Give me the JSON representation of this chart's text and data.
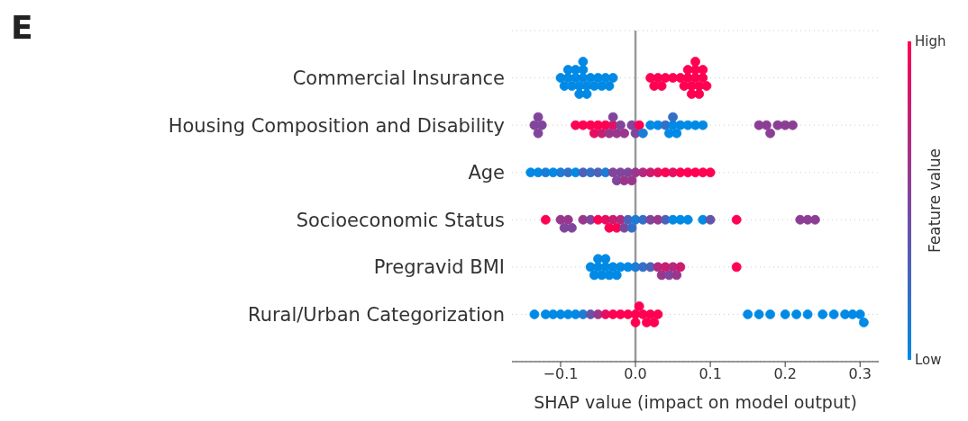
{
  "chart_data": {
    "type": "scatter",
    "orientation": "horizontal",
    "categories": [
      "Commercial Insurance",
      "Housing Composition and Disability",
      "Age",
      "Socioeconomic Status",
      "Pregravid BMI",
      "Rural/Urban Categorization"
    ],
    "series": [
      {
        "x": [
          "Commercial Insurance",
          "Commercial Insurance",
          "Commercial Insurance",
          "Commercial Insurance",
          "Commercial Insurance",
          "Commercial Insurance",
          "Commercial Insurance",
          "Commercial Insurance",
          "Commercial Insurance",
          "Commercial Insurance",
          "Commercial Insurance",
          "Commercial Insurance",
          "Commercial Insurance",
          "Commercial Insurance",
          "Commercial Insurance",
          "Commercial Insurance",
          "Commercial Insurance",
          "Commercial Insurance",
          "Commercial Insurance",
          "Commercial Insurance",
          "Commercial Insurance",
          "Commercial Insurance",
          "Commercial Insurance",
          "Commercial Insurance",
          "Commercial Insurance",
          "Commercial Insurance",
          "Commercial Insurance",
          "Commercial Insurance",
          "Commercial Insurance",
          "Commercial Insurance",
          "Commercial Insurance",
          "Commercial Insurance",
          "Commercial Insurance",
          "Commercial Insurance",
          "Commercial Insurance",
          "Commercial Insurance",
          "Commercial Insurance",
          "Commercial Insurance",
          "Commercial Insurance",
          "Commercial Insurance",
          "Commercial Insurance"
        ],
        "values": [
          -0.1,
          -0.095,
          -0.09,
          -0.09,
          -0.085,
          -0.08,
          -0.08,
          -0.075,
          -0.075,
          -0.07,
          -0.07,
          -0.07,
          -0.065,
          -0.065,
          -0.06,
          -0.055,
          -0.05,
          -0.045,
          -0.04,
          -0.035,
          -0.03,
          0.02,
          0.025,
          0.03,
          0.035,
          0.04,
          0.05,
          0.06,
          0.065,
          0.07,
          0.07,
          0.075,
          0.075,
          0.08,
          0.08,
          0.08,
          0.085,
          0.085,
          0.09,
          0.09,
          0.095
        ],
        "cvalues": [
          0,
          0,
          0,
          0,
          0,
          0,
          0,
          0,
          0,
          0,
          0,
          0,
          0,
          0,
          0,
          0,
          0,
          0,
          0,
          0,
          0,
          1,
          1,
          1,
          1,
          1,
          1,
          1,
          1,
          1,
          1,
          1,
          1,
          1,
          1,
          1,
          1,
          1,
          1,
          1,
          1
        ],
        "colors": [
          "#008ae5",
          "#008ae5",
          "#008ae5",
          "#008ae5",
          "#008ae5",
          "#008ae5",
          "#008ae5",
          "#008ae5",
          "#008ae5",
          "#008ae5",
          "#008ae5",
          "#008ae5",
          "#008ae5",
          "#008ae5",
          "#008ae5",
          "#008ae5",
          "#008ae5",
          "#008ae5",
          "#008ae5",
          "#008ae5",
          "#008ae5",
          "#ff0052",
          "#ff0052",
          "#ff0052",
          "#ff0052",
          "#ff0052",
          "#ff0052",
          "#ff0052",
          "#ff0052",
          "#ff0052",
          "#ff0052",
          "#ff0052",
          "#ff0052",
          "#ff0052",
          "#ff0052",
          "#ff0052",
          "#ff0052",
          "#ff0052",
          "#ff0052",
          "#ff0052",
          "#ff0052"
        ]
      },
      {
        "x": [
          "Housing Composition and Disability",
          "Housing Composition and Disability",
          "Housing Composition and Disability",
          "Housing Composition and Disability",
          "Housing Composition and Disability",
          "Housing Composition and Disability",
          "Housing Composition and Disability",
          "Housing Composition and Disability",
          "Housing Composition and Disability",
          "Housing Composition and Disability",
          "Housing Composition and Disability",
          "Housing Composition and Disability",
          "Housing Composition and Disability",
          "Housing Composition and Disability",
          "Housing Composition and Disability",
          "Housing Composition and Disability",
          "Housing Composition and Disability",
          "Housing Composition and Disability",
          "Housing Composition and Disability",
          "Housing Composition and Disability",
          "Housing Composition and Disability",
          "Housing Composition and Disability",
          "Housing Composition and Disability",
          "Housing Composition and Disability",
          "Housing Composition and Disability",
          "Housing Composition and Disability",
          "Housing Composition and Disability",
          "Housing Composition and Disability",
          "Housing Composition and Disability",
          "Housing Composition and Disability",
          "Housing Composition and Disability",
          "Housing Composition and Disability",
          "Housing Composition and Disability",
          "Housing Composition and Disability",
          "Housing Composition and Disability",
          "Housing Composition and Disability",
          "Housing Composition and Disability",
          "Housing Composition and Disability"
        ],
        "values": [
          -0.135,
          -0.13,
          -0.13,
          -0.125,
          -0.08,
          -0.07,
          -0.06,
          -0.055,
          -0.05,
          -0.045,
          -0.04,
          -0.035,
          -0.03,
          -0.03,
          -0.025,
          -0.02,
          -0.015,
          -0.005,
          0.0,
          0.005,
          0.01,
          0.02,
          0.03,
          0.04,
          0.045,
          0.05,
          0.05,
          0.055,
          0.06,
          0.07,
          0.08,
          0.09,
          0.165,
          0.175,
          0.18,
          0.19,
          0.2,
          0.21
        ],
        "cvalues": [
          0.5,
          0.5,
          0.5,
          0.5,
          1,
          1,
          1,
          0.9,
          1,
          0.8,
          1,
          0.6,
          0.9,
          0.5,
          0.6,
          0.5,
          0.6,
          0.5,
          0.5,
          1,
          0.1,
          0,
          0,
          0.2,
          0,
          0,
          0.2,
          0,
          0,
          0,
          0,
          0,
          0.55,
          0.55,
          0.55,
          0.55,
          0.55,
          0.55
        ],
        "colors": [
          "#80459c",
          "#80459c",
          "#80459c",
          "#80459c",
          "#ff0052",
          "#ff0052",
          "#ff0052",
          "#e60e61",
          "#ff0052",
          "#cc1c6f",
          "#ff0052",
          "#99378d",
          "#e60e61",
          "#80459c",
          "#99378d",
          "#80459c",
          "#99378d",
          "#80459c",
          "#80459c",
          "#ff0052",
          "#1a7cd6",
          "#008ae5",
          "#008ae5",
          "#336ec8",
          "#008ae5",
          "#008ae5",
          "#336ec8",
          "#008ae5",
          "#008ae5",
          "#008ae5",
          "#008ae5",
          "#008ae5",
          "#8c3e94",
          "#8c3e94",
          "#8c3e94",
          "#8c3e94",
          "#8c3e94",
          "#8c3e94"
        ]
      },
      {
        "x": [
          "Age",
          "Age",
          "Age",
          "Age",
          "Age",
          "Age",
          "Age",
          "Age",
          "Age",
          "Age",
          "Age",
          "Age",
          "Age",
          "Age",
          "Age",
          "Age",
          "Age",
          "Age",
          "Age",
          "Age",
          "Age",
          "Age",
          "Age",
          "Age",
          "Age",
          "Age",
          "Age",
          "Age"
        ],
        "values": [
          -0.14,
          -0.13,
          -0.12,
          -0.11,
          -0.1,
          -0.09,
          -0.08,
          -0.07,
          -0.06,
          -0.05,
          -0.04,
          -0.03,
          -0.025,
          -0.02,
          -0.015,
          -0.01,
          -0.005,
          0.0,
          0.01,
          0.02,
          0.03,
          0.04,
          0.05,
          0.06,
          0.07,
          0.08,
          0.09,
          0.1
        ],
        "cvalues": [
          0,
          0,
          0.1,
          0,
          0.1,
          0.2,
          0,
          0.3,
          0.2,
          0.3,
          0.1,
          0.5,
          0.5,
          0.5,
          0.6,
          0.5,
          0.6,
          0.6,
          0.7,
          0.8,
          0.9,
          1,
          0.9,
          1,
          1,
          1,
          1,
          1
        ],
        "colors": [
          "#008ae5",
          "#008ae5",
          "#1a7cd6",
          "#008ae5",
          "#1a7cd6",
          "#336ec8",
          "#008ae5",
          "#4d61b9",
          "#336ec8",
          "#4d61b9",
          "#1a7cd6",
          "#80459c",
          "#80459c",
          "#80459c",
          "#99378d",
          "#80459c",
          "#99378d",
          "#99378d",
          "#b3297e",
          "#cc1c6f",
          "#e60e61",
          "#ff0052",
          "#e60e61",
          "#ff0052",
          "#ff0052",
          "#ff0052",
          "#ff0052",
          "#ff0052"
        ]
      },
      {
        "x": [
          "Socioeconomic Status",
          "Socioeconomic Status",
          "Socioeconomic Status",
          "Socioeconomic Status",
          "Socioeconomic Status",
          "Socioeconomic Status",
          "Socioeconomic Status",
          "Socioeconomic Status",
          "Socioeconomic Status",
          "Socioeconomic Status",
          "Socioeconomic Status",
          "Socioeconomic Status",
          "Socioeconomic Status",
          "Socioeconomic Status",
          "Socioeconomic Status",
          "Socioeconomic Status",
          "Socioeconomic Status",
          "Socioeconomic Status",
          "Socioeconomic Status",
          "Socioeconomic Status",
          "Socioeconomic Status",
          "Socioeconomic Status",
          "Socioeconomic Status",
          "Socioeconomic Status",
          "Socioeconomic Status",
          "Socioeconomic Status",
          "Socioeconomic Status",
          "Socioeconomic Status",
          "Socioeconomic Status",
          "Socioeconomic Status"
        ],
        "values": [
          -0.12,
          -0.1,
          -0.095,
          -0.09,
          -0.085,
          -0.07,
          -0.06,
          -0.05,
          -0.04,
          -0.035,
          -0.03,
          -0.025,
          -0.02,
          -0.015,
          -0.01,
          -0.005,
          0.0,
          0.01,
          0.02,
          0.03,
          0.04,
          0.05,
          0.06,
          0.07,
          0.09,
          0.1,
          0.135,
          0.22,
          0.23,
          0.24
        ],
        "cvalues": [
          1,
          0.6,
          0.5,
          0.6,
          0.5,
          0.6,
          0.5,
          1,
          0.9,
          1,
          0.8,
          1,
          0.7,
          0.5,
          0.3,
          0.2,
          0.1,
          0.2,
          0.5,
          0.6,
          0.3,
          0,
          0,
          0,
          0,
          0.4,
          1,
          0.55,
          0.55,
          0.55
        ],
        "colors": [
          "#ff0052",
          "#99378d",
          "#80459c",
          "#99378d",
          "#80459c",
          "#99378d",
          "#80459c",
          "#ff0052",
          "#e60e61",
          "#ff0052",
          "#cc1c6f",
          "#ff0052",
          "#b3297e",
          "#80459c",
          "#4d61b9",
          "#336ec8",
          "#1a7cd6",
          "#336ec8",
          "#80459c",
          "#99378d",
          "#4d61b9",
          "#008ae5",
          "#008ae5",
          "#008ae5",
          "#008ae5",
          "#6653aa",
          "#ff0052",
          "#8c3e94",
          "#8c3e94",
          "#8c3e94"
        ]
      },
      {
        "x": [
          "Pregravid BMI",
          "Pregravid BMI",
          "Pregravid BMI",
          "Pregravid BMI",
          "Pregravid BMI",
          "Pregravid BMI",
          "Pregravid BMI",
          "Pregravid BMI",
          "Pregravid BMI",
          "Pregravid BMI",
          "Pregravid BMI",
          "Pregravid BMI",
          "Pregravid BMI",
          "Pregravid BMI",
          "Pregravid BMI",
          "Pregravid BMI",
          "Pregravid BMI",
          "Pregravid BMI",
          "Pregravid BMI",
          "Pregravid BMI",
          "Pregravid BMI",
          "Pregravid BMI",
          "Pregravid BMI"
        ],
        "values": [
          -0.06,
          -0.055,
          -0.05,
          -0.05,
          -0.045,
          -0.04,
          -0.04,
          -0.035,
          -0.03,
          -0.025,
          -0.02,
          -0.01,
          0.0,
          0.01,
          0.02,
          0.03,
          0.035,
          0.04,
          0.045,
          0.05,
          0.055,
          0.06,
          0.135
        ],
        "cvalues": [
          0,
          0,
          0,
          0,
          0,
          0,
          0,
          0,
          0,
          0,
          0,
          0,
          0.1,
          0.2,
          0.3,
          0.7,
          0.6,
          0.8,
          0.5,
          0.7,
          0.6,
          0.8,
          1
        ],
        "colors": [
          "#008ae5",
          "#008ae5",
          "#008ae5",
          "#008ae5",
          "#008ae5",
          "#008ae5",
          "#008ae5",
          "#008ae5",
          "#008ae5",
          "#008ae5",
          "#008ae5",
          "#008ae5",
          "#1a7cd6",
          "#336ec8",
          "#4d61b9",
          "#b3297e",
          "#99378d",
          "#cc1c6f",
          "#80459c",
          "#b3297e",
          "#99378d",
          "#cc1c6f",
          "#ff0052"
        ]
      },
      {
        "x": [
          "Rural/Urban Categorization",
          "Rural/Urban Categorization",
          "Rural/Urban Categorization",
          "Rural/Urban Categorization",
          "Rural/Urban Categorization",
          "Rural/Urban Categorization",
          "Rural/Urban Categorization",
          "Rural/Urban Categorization",
          "Rural/Urban Categorization",
          "Rural/Urban Categorization",
          "Rural/Urban Categorization",
          "Rural/Urban Categorization",
          "Rural/Urban Categorization",
          "Rural/Urban Categorization",
          "Rural/Urban Categorization",
          "Rural/Urban Categorization",
          "Rural/Urban Categorization",
          "Rural/Urban Categorization",
          "Rural/Urban Categorization",
          "Rural/Urban Categorization",
          "Rural/Urban Categorization",
          "Rural/Urban Categorization",
          "Rural/Urban Categorization",
          "Rural/Urban Categorization",
          "Rural/Urban Categorization",
          "Rural/Urban Categorization",
          "Rural/Urban Categorization",
          "Rural/Urban Categorization",
          "Rural/Urban Categorization",
          "Rural/Urban Categorization",
          "Rural/Urban Categorization",
          "Rural/Urban Categorization",
          "Rural/Urban Categorization"
        ],
        "values": [
          -0.135,
          -0.12,
          -0.11,
          -0.1,
          -0.09,
          -0.08,
          -0.07,
          -0.06,
          -0.05,
          -0.04,
          -0.03,
          -0.02,
          -0.01,
          0.0,
          0.0,
          0.005,
          0.01,
          0.015,
          0.02,
          0.025,
          0.03,
          0.15,
          0.165,
          0.18,
          0.2,
          0.215,
          0.23,
          0.25,
          0.265,
          0.28,
          0.29,
          0.3,
          0.305
        ],
        "cvalues": [
          0,
          0,
          0,
          0,
          0,
          0,
          0.1,
          0.4,
          0.6,
          0.9,
          1,
          1,
          1,
          1,
          1,
          1,
          1,
          1,
          1,
          1,
          1,
          0,
          0,
          0,
          0,
          0,
          0,
          0,
          0,
          0,
          0,
          0,
          0
        ],
        "colors": [
          "#008ae5",
          "#008ae5",
          "#008ae5",
          "#008ae5",
          "#008ae5",
          "#008ae5",
          "#1a7cd6",
          "#6653aa",
          "#99378d",
          "#e60e61",
          "#ff0052",
          "#ff0052",
          "#ff0052",
          "#ff0052",
          "#ff0052",
          "#ff0052",
          "#ff0052",
          "#ff0052",
          "#ff0052",
          "#ff0052",
          "#ff0052",
          "#008ae5",
          "#008ae5",
          "#008ae5",
          "#008ae5",
          "#008ae5",
          "#008ae5",
          "#008ae5",
          "#008ae5",
          "#008ae5",
          "#008ae5",
          "#008ae5",
          "#008ae5"
        ]
      }
    ],
    "xlim": [
      -0.165,
      0.325
    ],
    "xticks": [
      {
        "value": -0.1,
        "label": "−0.1"
      },
      {
        "value": 0,
        "label": "0.0"
      },
      {
        "value": 0.1,
        "label": "0.1"
      },
      {
        "value": 0.2,
        "label": "0.2"
      },
      {
        "value": 0.3,
        "label": "0.3"
      }
    ],
    "xlabel": "SHAP value (impact on model output)",
    "clabel": "Feature value",
    "clim": [
      0,
      1
    ],
    "cticks": [
      {
        "value": 0,
        "label": "Low"
      },
      {
        "value": 1,
        "label": "High"
      }
    ],
    "ref_lines": [
      {
        "axis": "x",
        "value": 0,
        "color": "#999999"
      }
    ],
    "grid": "y",
    "marker": "circle",
    "annotations": [
      "E"
    ]
  }
}
